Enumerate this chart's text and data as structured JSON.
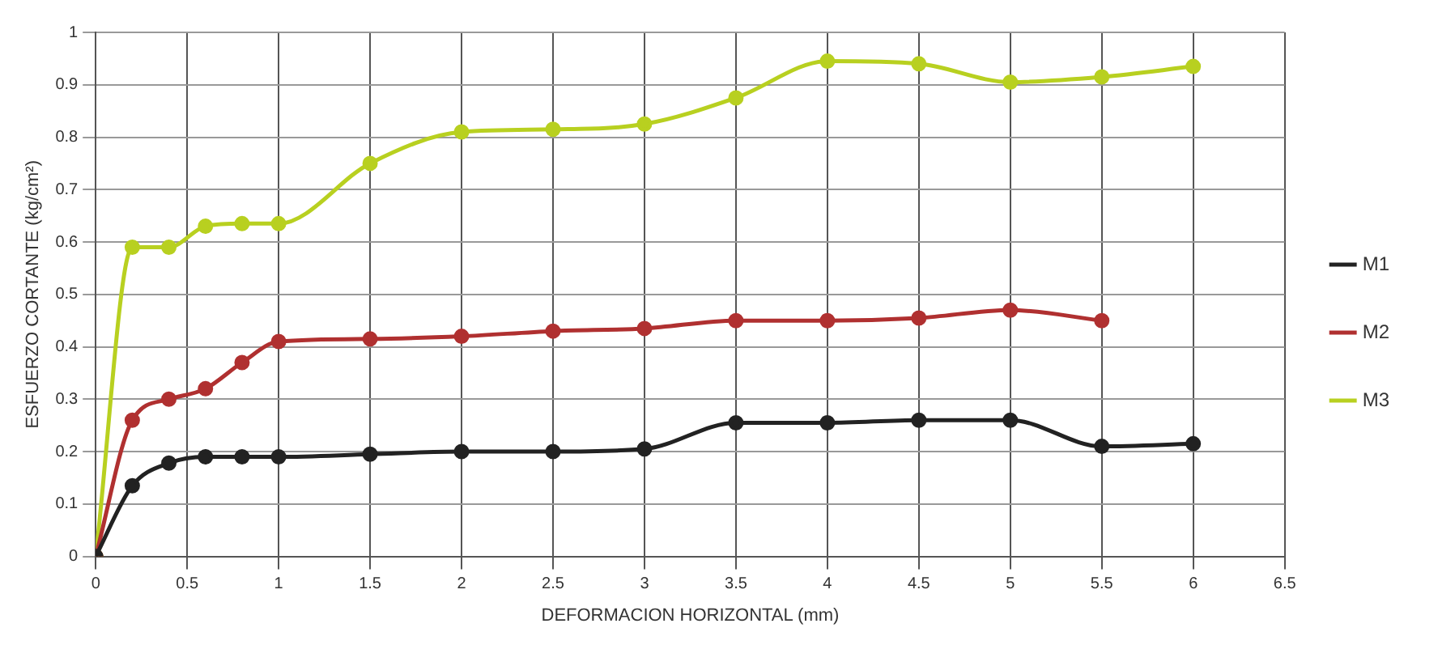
{
  "chart_data": {
    "type": "line",
    "xlabel": "DEFORMACION HORIZONTAL (mm)",
    "ylabel": "ESFUERZO CORTANTE (kg/cm²)",
    "xlim": [
      0,
      6.5
    ],
    "xticks": [
      0,
      0.5,
      1,
      1.5,
      2,
      2.5,
      3,
      3.5,
      4,
      4.5,
      5,
      5.5,
      6,
      6.5
    ],
    "ylim": [
      0,
      1
    ],
    "yticks": [
      0,
      0.1,
      0.2,
      0.3,
      0.4,
      0.5,
      0.6,
      0.7,
      0.8,
      0.9,
      1
    ],
    "grid": true,
    "legend": "right",
    "marker": "circle",
    "line_style": "solid",
    "series": [
      {
        "name": "M1",
        "color": "#222222",
        "x": [
          0,
          0.2,
          0.4,
          0.6,
          0.8,
          1,
          1.5,
          2,
          2.5,
          3,
          3.5,
          4,
          4.5,
          5,
          5.5,
          6
        ],
        "values": [
          0,
          0.135,
          0.178,
          0.19,
          0.19,
          0.19,
          0.195,
          0.2,
          0.2,
          0.205,
          0.255,
          0.255,
          0.26,
          0.26,
          0.21,
          0.215
        ]
      },
      {
        "name": "M2",
        "color": "#b03030",
        "x": [
          0,
          0.2,
          0.4,
          0.6,
          0.8,
          1,
          1.5,
          2,
          2.5,
          3,
          3.5,
          4,
          4.5,
          5,
          5.5
        ],
        "values": [
          0,
          0.26,
          0.3,
          0.32,
          0.37,
          0.41,
          0.415,
          0.42,
          0.43,
          0.435,
          0.45,
          0.45,
          0.455,
          0.47,
          0.45
        ]
      },
      {
        "name": "M3",
        "color": "#b8d020",
        "x": [
          0,
          0.2,
          0.4,
          0.6,
          0.8,
          1,
          1.5,
          2,
          2.5,
          3,
          3.5,
          4,
          4.5,
          5,
          5.5,
          6
        ],
        "values": [
          0,
          0.59,
          0.59,
          0.63,
          0.635,
          0.635,
          0.75,
          0.81,
          0.815,
          0.825,
          0.875,
          0.945,
          0.94,
          0.905,
          0.915,
          0.935
        ]
      }
    ]
  }
}
